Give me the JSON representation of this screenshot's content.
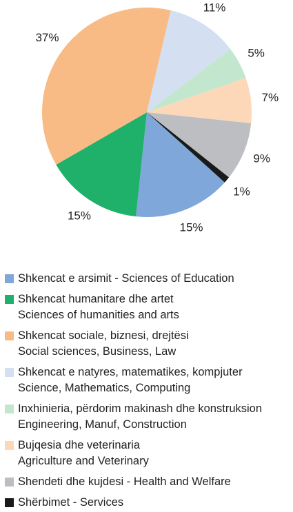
{
  "chart_data": {
    "type": "pie",
    "categories": [
      "Shkencat e arsimit - Sciences of Education",
      "Shkencat humanitare dhe artet\nSciences of humanities and arts",
      "Shkencat sociale, biznesi, drejtësi\nSocial sciences, Business, Law",
      "Shkencat e natyres, matematikes, kompjuter\nScience, Mathematics, Computing",
      "Inxhinieria, përdorim makinash dhe konstruksion\nEngineering, Manuf, Construction",
      "Bujqesia dhe veterinaria\nAgriculture and  Veterinary",
      "Shendeti dhe kujdesi - Health and Welfare",
      "Shërbimet - Services"
    ],
    "values": [
      15,
      15,
      37,
      11,
      5,
      7,
      9,
      1
    ],
    "value_labels": [
      "15%",
      "15%",
      "37%",
      "11%",
      "5%",
      "7%",
      "9%",
      "1%"
    ],
    "colors": [
      "#7fa7d9",
      "#1fb06a",
      "#f8bb86",
      "#d5dff2",
      "#c3e6cf",
      "#fdd8b8",
      "#bdbec2",
      "#1a1a1a"
    ]
  }
}
